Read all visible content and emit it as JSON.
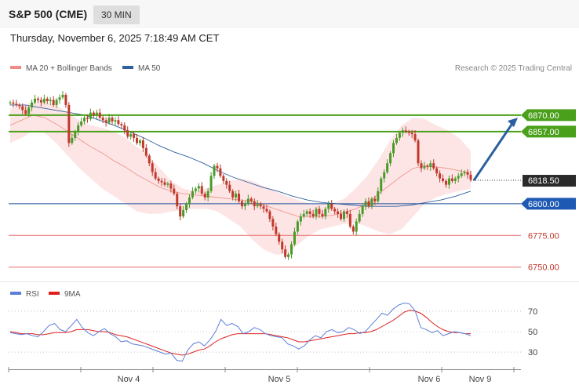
{
  "header": {
    "symbol": "S&P 500 (CME)",
    "timeframe": "30 MIN",
    "timestamp": "Thursday, November 6, 2025 7:18:49 AM CET",
    "copyright": "Research © 2025 Trading Central"
  },
  "colors": {
    "bollinger": "#f08b85",
    "ma50": "#2f5f9e",
    "up": "#4a9a2a",
    "down": "#c0392b",
    "resistance": "#4aa01a",
    "support": "#1c4f9c",
    "minor": "#e86a6a",
    "rsi": "#5c7ed8",
    "rsi_ma": "#e02020",
    "arrow": "#2a5fa0"
  },
  "chart_data": [
    {
      "type": "candlestick",
      "legend": [
        {
          "name": "MA 20 + Bollinger Bands",
          "color": "#f08b85"
        },
        {
          "name": "MA 50",
          "color": "#2f5f9e"
        }
      ],
      "ylim": [
        6743,
        6899
      ],
      "x_labels": [
        "Nov 4",
        "Nov 5",
        "Nov 6",
        "Nov 9"
      ],
      "closes": [
        6880,
        6879,
        6878,
        6877,
        6874,
        6871,
        6876,
        6880,
        6883,
        6882,
        6880,
        6883,
        6881,
        6882,
        6878,
        6882,
        6884,
        6886,
        6878,
        6848,
        6852,
        6857,
        6862,
        6865,
        6868,
        6867,
        6872,
        6870,
        6872,
        6868,
        6866,
        6864,
        6868,
        6865,
        6866,
        6863,
        6862,
        6858,
        6853,
        6855,
        6852,
        6848,
        6850,
        6844,
        6838,
        6832,
        6825,
        6820,
        6818,
        6817,
        6815,
        6816,
        6812,
        6808,
        6798,
        6790,
        6795,
        6800,
        6805,
        6810,
        6812,
        6814,
        6808,
        6805,
        6810,
        6822,
        6830,
        6828,
        6822,
        6818,
        6815,
        6810,
        6805,
        6808,
        6802,
        6798,
        6800,
        6804,
        6802,
        6798,
        6800,
        6798,
        6796,
        6794,
        6788,
        6782,
        6776,
        6770,
        6764,
        6758,
        6760,
        6768,
        6778,
        6786,
        6790,
        6792,
        6794,
        6792,
        6790,
        6796,
        6792,
        6790,
        6796,
        6800,
        6796,
        6794,
        6792,
        6788,
        6794,
        6792,
        6782,
        6778,
        6786,
        6792,
        6798,
        6802,
        6798,
        6804,
        6802,
        6810,
        6820,
        6825,
        6832,
        6840,
        6848,
        6852,
        6856,
        6858,
        6857,
        6856,
        6855,
        6850,
        6832,
        6828,
        6830,
        6829,
        6832,
        6828,
        6824,
        6820,
        6818,
        6815,
        6820,
        6818,
        6820,
        6822,
        6824,
        6825,
        6823,
        6819
      ],
      "bollinger_mid": [
        6862,
        6866,
        6870,
        6868,
        6863,
        6857,
        6851,
        6845,
        6840,
        6834,
        6829,
        6823,
        6818,
        6813,
        6810,
        6808,
        6807,
        6806,
        6805,
        6804,
        6803,
        6802,
        6799,
        6796,
        6793,
        6790,
        6790,
        6790,
        6791,
        6793,
        6796,
        6800,
        6808,
        6815,
        6822,
        6828,
        6830,
        6829,
        6828,
        6826,
        6824
      ],
      "bollinger_upper": [
        6875,
        6878,
        6880,
        6880,
        6878,
        6872,
        6866,
        6862,
        6860,
        6857,
        6852,
        6845,
        6838,
        6828,
        6818,
        6812,
        6810,
        6812,
        6815,
        6818,
        6820,
        6818,
        6814,
        6810,
        6806,
        6803,
        6800,
        6800,
        6800,
        6804,
        6812,
        6822,
        6835,
        6850,
        6862,
        6868,
        6867,
        6862,
        6858,
        6852,
        6842
      ],
      "bollinger_lower": [
        6848,
        6852,
        6858,
        6856,
        6848,
        6838,
        6828,
        6820,
        6812,
        6806,
        6800,
        6794,
        6792,
        6792,
        6794,
        6795,
        6796,
        6796,
        6794,
        6788,
        6782,
        6772,
        6764,
        6760,
        6760,
        6768,
        6775,
        6780,
        6782,
        6784,
        6785,
        6782,
        6778,
        6776,
        6780,
        6790,
        6800,
        6805,
        6808,
        6810,
        6812
      ],
      "ma50": [
        6878,
        6878,
        6876,
        6874,
        6872,
        6870,
        6866,
        6862,
        6857,
        6852,
        6846,
        6841,
        6837,
        6832,
        6826,
        6821,
        6817,
        6813,
        6810,
        6806,
        6803,
        6801,
        6800,
        6799,
        6798,
        6798,
        6798,
        6799,
        6801,
        6803,
        6806,
        6810
      ],
      "levels": [
        {
          "label": "6870.00",
          "value": 6870,
          "kind": "resistance",
          "tag": "green"
        },
        {
          "label": "6857.00",
          "value": 6857,
          "kind": "resistance",
          "tag": "green"
        },
        {
          "label": "6818.50",
          "value": 6818.5,
          "kind": "last",
          "tag": "dark"
        },
        {
          "label": "6800.00",
          "value": 6800,
          "kind": "support",
          "tag": "blue"
        },
        {
          "label": "6775.00",
          "value": 6775,
          "kind": "minor",
          "tag": "text"
        },
        {
          "label": "6750.00",
          "value": 6750,
          "kind": "minor",
          "tag": "text"
        }
      ],
      "projection": {
        "from": 6818.5,
        "to": 6868
      }
    },
    {
      "type": "line",
      "legend": [
        {
          "name": "RSI",
          "color": "#5c7ed8"
        },
        {
          "name": "9MA",
          "color": "#e02020"
        }
      ],
      "ylim": [
        17,
        83
      ],
      "yticks": [
        30,
        50,
        70
      ],
      "rsi": [
        49,
        48,
        47,
        48,
        46,
        45,
        50,
        56,
        58,
        52,
        50,
        56,
        62,
        54,
        49,
        46,
        50,
        53,
        48,
        45,
        40,
        41,
        38,
        37,
        36,
        34,
        32,
        30,
        28,
        29,
        22,
        21,
        32,
        38,
        40,
        36,
        42,
        50,
        62,
        56,
        58,
        55,
        48,
        50,
        54,
        52,
        48,
        46,
        45,
        44,
        38,
        36,
        33,
        36,
        42,
        46,
        44,
        50,
        52,
        49,
        50,
        54,
        52,
        48,
        50,
        56,
        62,
        68,
        66,
        72,
        76,
        78,
        77,
        70,
        54,
        52,
        49,
        51,
        46,
        48,
        50,
        49,
        48,
        46
      ],
      "rsi_ma": [
        50,
        49,
        48,
        48,
        48,
        47,
        47,
        48,
        49,
        49,
        49,
        50,
        52,
        52,
        52,
        51,
        50,
        50,
        49,
        47,
        46,
        45,
        43,
        41,
        39,
        37,
        35,
        33,
        31,
        29,
        28,
        27,
        28,
        30,
        32,
        33,
        36,
        40,
        43,
        45,
        47,
        48,
        48,
        48,
        48,
        48,
        48,
        47,
        46,
        45,
        44,
        42,
        40,
        40,
        41,
        42,
        43,
        44,
        45,
        46,
        47,
        48,
        48,
        49,
        49,
        50,
        52,
        55,
        58,
        61,
        65,
        69,
        71,
        70,
        68,
        64,
        59,
        55,
        52,
        50,
        49,
        49,
        48,
        48
      ]
    }
  ]
}
